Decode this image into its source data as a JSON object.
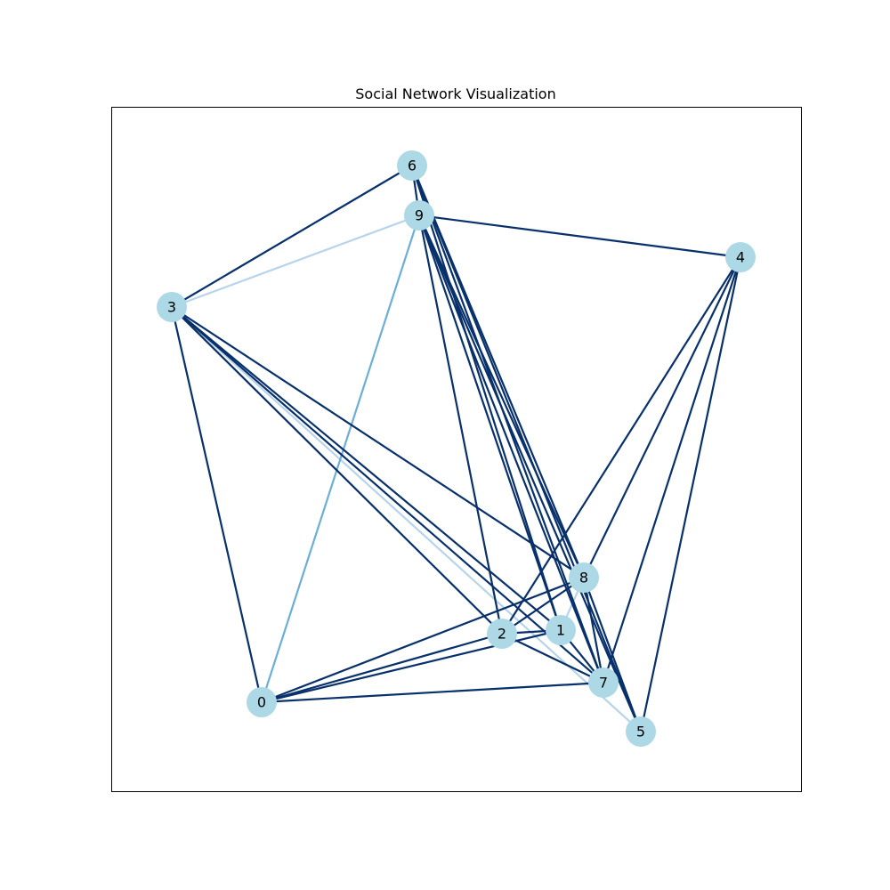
{
  "title": "Social Network Visualization",
  "colors": {
    "node_fill": "#add8e6",
    "edge_strong": "#08306b",
    "edge_medium": "#6baed6",
    "edge_light": "#b8d4ea",
    "frame": "#000000"
  },
  "nodes": [
    {
      "id": "0",
      "label": "0"
    },
    {
      "id": "1",
      "label": "1"
    },
    {
      "id": "2",
      "label": "2"
    },
    {
      "id": "3",
      "label": "3"
    },
    {
      "id": "4",
      "label": "4"
    },
    {
      "id": "5",
      "label": "5"
    },
    {
      "id": "6",
      "label": "6"
    },
    {
      "id": "7",
      "label": "7"
    },
    {
      "id": "8",
      "label": "8"
    },
    {
      "id": "9",
      "label": "9"
    }
  ],
  "edges": [
    {
      "source": "3",
      "target": "6",
      "strength": "strong"
    },
    {
      "source": "3",
      "target": "9",
      "strength": "light"
    },
    {
      "source": "3",
      "target": "0",
      "strength": "strong"
    },
    {
      "source": "3",
      "target": "8",
      "strength": "strong"
    },
    {
      "source": "3",
      "target": "1",
      "strength": "strong"
    },
    {
      "source": "3",
      "target": "2",
      "strength": "strong"
    },
    {
      "source": "3",
      "target": "7",
      "strength": "strong"
    },
    {
      "source": "3",
      "target": "5",
      "strength": "light"
    },
    {
      "source": "9",
      "target": "4",
      "strength": "strong"
    },
    {
      "source": "9",
      "target": "0",
      "strength": "medium"
    },
    {
      "source": "9",
      "target": "2",
      "strength": "strong"
    },
    {
      "source": "9",
      "target": "1",
      "strength": "strong"
    },
    {
      "source": "9",
      "target": "8",
      "strength": "strong"
    },
    {
      "source": "9",
      "target": "7",
      "strength": "strong"
    },
    {
      "source": "9",
      "target": "5",
      "strength": "strong"
    },
    {
      "source": "6",
      "target": "9",
      "strength": "strong"
    },
    {
      "source": "6",
      "target": "8",
      "strength": "strong"
    },
    {
      "source": "6",
      "target": "7",
      "strength": "strong"
    },
    {
      "source": "6",
      "target": "5",
      "strength": "strong"
    },
    {
      "source": "6",
      "target": "1",
      "strength": "strong"
    },
    {
      "source": "4",
      "target": "8",
      "strength": "strong"
    },
    {
      "source": "4",
      "target": "2",
      "strength": "strong"
    },
    {
      "source": "4",
      "target": "7",
      "strength": "strong"
    },
    {
      "source": "4",
      "target": "5",
      "strength": "strong"
    },
    {
      "source": "0",
      "target": "2",
      "strength": "strong"
    },
    {
      "source": "0",
      "target": "1",
      "strength": "strong"
    },
    {
      "source": "0",
      "target": "8",
      "strength": "strong"
    },
    {
      "source": "0",
      "target": "7",
      "strength": "strong"
    },
    {
      "source": "2",
      "target": "1",
      "strength": "strong"
    },
    {
      "source": "2",
      "target": "8",
      "strength": "strong"
    },
    {
      "source": "2",
      "target": "7",
      "strength": "strong"
    },
    {
      "source": "1",
      "target": "8",
      "strength": "light"
    },
    {
      "source": "1",
      "target": "7",
      "strength": "strong"
    },
    {
      "source": "8",
      "target": "7",
      "strength": "strong"
    },
    {
      "source": "8",
      "target": "5",
      "strength": "strong"
    }
  ]
}
